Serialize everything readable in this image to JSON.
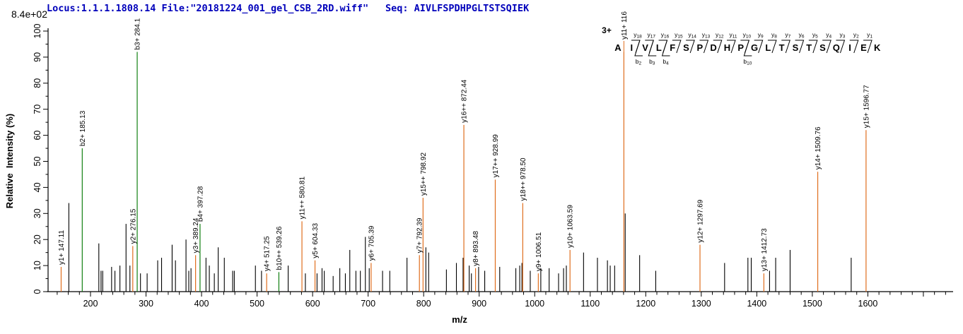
{
  "header": {
    "locus_file": "Locus:1.1.1.1808.14 File:\"20181224_001_gel_CSB_2RD.wiff\"",
    "seq_label": "Seq: AIVLFSPDHPGLTSTSQIEK",
    "intensity_full_scale": "8.4e+02"
  },
  "colors": {
    "y_ion": "#E06E1E",
    "b_ion": "#128012",
    "unassigned": "#000000",
    "header_blue": "#0000BB",
    "precursor_blue": "#0000DD",
    "axis": "#000000"
  },
  "chart_data": {
    "type": "bar",
    "subtype": "ms2-centroided-spectrum",
    "xlabel": "m/z",
    "ylabel": "Relative  Intensity (%)",
    "x_range": [
      120,
      1750
    ],
    "y_range": [
      0,
      100
    ],
    "x_major_ticks": [
      200,
      300,
      400,
      500,
      600,
      700,
      800,
      900,
      1000,
      1100,
      1200,
      1300,
      1400,
      1500,
      1600
    ],
    "x_minor_step": 20,
    "y_major_step": 10,
    "y_minor_step": 5,
    "y_tick_labels": [
      "0",
      "10",
      "20",
      "30",
      "40",
      "50",
      "60",
      "70",
      "80",
      "90",
      "100"
    ],
    "intensity_full_scale": "8.4e+02",
    "precursor": {
      "charge": "3+"
    },
    "peptide": {
      "sequence": "AIVLFSPDHPGLTSTSQIEK",
      "y_marks": [
        {
          "label": "y18",
          "after": 2
        },
        {
          "label": "y17",
          "after": 3
        },
        {
          "label": "y16",
          "after": 4
        },
        {
          "label": "y15",
          "after": 5
        },
        {
          "label": "y14",
          "after": 6
        },
        {
          "label": "y13",
          "after": 7
        },
        {
          "label": "y12",
          "after": 8
        },
        {
          "label": "y11",
          "after": 9
        },
        {
          "label": "y10",
          "after": 10
        },
        {
          "label": "y9",
          "after": 11
        },
        {
          "label": "y8",
          "after": 12
        },
        {
          "label": "y7",
          "after": 13
        },
        {
          "label": "y6",
          "after": 14
        },
        {
          "label": "y5",
          "after": 15
        },
        {
          "label": "y4",
          "after": 16
        },
        {
          "label": "y3",
          "after": 17
        },
        {
          "label": "y2",
          "after": 18
        },
        {
          "label": "y1",
          "after": 19
        }
      ],
      "b_marks": [
        {
          "label": "b2",
          "after": 2
        },
        {
          "label": "b3",
          "after": 3
        },
        {
          "label": "b4",
          "after": 4
        },
        {
          "label": "b10",
          "after": 10
        }
      ]
    },
    "series": [
      {
        "name": "y-ions",
        "color": "#E06E1E",
        "points": [
          {
            "label": "y1+ 147.11",
            "mz": 147.11,
            "i": 9.5
          },
          {
            "label": "y2+ 276.15",
            "mz": 276.15,
            "i": 17.5
          },
          {
            "label": "y3+ 389.24",
            "mz": 389.24,
            "i": 14
          },
          {
            "label": "y4+ 517.25",
            "mz": 517.25,
            "i": 7
          },
          {
            "label": "y11++ 580.81",
            "mz": 580.81,
            "i": 27
          },
          {
            "label": "y5+ 604.33",
            "mz": 604.33,
            "i": 12
          },
          {
            "label": "y6+ 705.39",
            "mz": 705.39,
            "i": 11
          },
          {
            "label": "y7+ 792.39",
            "mz": 792.39,
            "i": 14
          },
          {
            "label": "y15++ 798.92",
            "mz": 798.92,
            "i": 36
          },
          {
            "label": "y16++ 872.44",
            "mz": 872.44,
            "i": 64
          },
          {
            "label": "y8+ 893.48",
            "mz": 893.48,
            "i": 9
          },
          {
            "label": "y17++ 928.99",
            "mz": 928.99,
            "i": 43
          },
          {
            "label": "y18++ 978.50",
            "mz": 978.5,
            "i": 34
          },
          {
            "label": "y9+ 1006.51",
            "mz": 1006.51,
            "i": 7
          },
          {
            "label": "y10+ 1063.59",
            "mz": 1063.59,
            "i": 16
          },
          {
            "label": "y11+ 116",
            "mz": 1160.62,
            "i": 92,
            "label_clipped_at_top": true
          },
          {
            "label": "y12+ 1297.69",
            "mz": 1297.69,
            "i": 18
          },
          {
            "label": "y13+ 1412.73",
            "mz": 1412.73,
            "i": 7
          },
          {
            "label": "y14+ 1509.76",
            "mz": 1509.76,
            "i": 46
          },
          {
            "label": "y15+ 1596.77",
            "mz": 1596.77,
            "i": 62
          }
        ]
      },
      {
        "name": "b-ions",
        "color": "#128012",
        "points": [
          {
            "label": "b2+ 185.13",
            "mz": 185.13,
            "i": 55
          },
          {
            "label": "b3+ 284.1",
            "mz": 284.1,
            "i": 92
          },
          {
            "label": "b4+ 397.28",
            "mz": 397.28,
            "i": 26
          },
          {
            "label": "b10++ 539.26",
            "mz": 539.26,
            "i": 7.5
          }
        ]
      },
      {
        "name": "unassigned",
        "color": "#000000",
        "points": [
          [
            161,
            34
          ],
          [
            215,
            18.5
          ],
          [
            219,
            8
          ],
          [
            222,
            8
          ],
          [
            238,
            9.5
          ],
          [
            244,
            8
          ],
          [
            253,
            10
          ],
          [
            264,
            26
          ],
          [
            271,
            10
          ],
          [
            290,
            7
          ],
          [
            302,
            7
          ],
          [
            321,
            12
          ],
          [
            328,
            13
          ],
          [
            347,
            18
          ],
          [
            353,
            12
          ],
          [
            372,
            20
          ],
          [
            377,
            8
          ],
          [
            381,
            9
          ],
          [
            408,
            13
          ],
          [
            414,
            10
          ],
          [
            423,
            7
          ],
          [
            430,
            17
          ],
          [
            441,
            13
          ],
          [
            456,
            8
          ],
          [
            459,
            8
          ],
          [
            497,
            10
          ],
          [
            508,
            8
          ],
          [
            556,
            10
          ],
          [
            587,
            7
          ],
          [
            608,
            7
          ],
          [
            617,
            9
          ],
          [
            621,
            8
          ],
          [
            637,
            6
          ],
          [
            649,
            9
          ],
          [
            659,
            7
          ],
          [
            667,
            16
          ],
          [
            678,
            8
          ],
          [
            686,
            8
          ],
          [
            695,
            21
          ],
          [
            702,
            9
          ],
          [
            726,
            8
          ],
          [
            739,
            8
          ],
          [
            770,
            13
          ],
          [
            804,
            17
          ],
          [
            809,
            15
          ],
          [
            841,
            8.5
          ],
          [
            859,
            11
          ],
          [
            871,
            13
          ],
          [
            882,
            10
          ],
          [
            886,
            7
          ],
          [
            899,
            9.5
          ],
          [
            910,
            8
          ],
          [
            937,
            9.5
          ],
          [
            966,
            9
          ],
          [
            973,
            10
          ],
          [
            977,
            11
          ],
          [
            992,
            8
          ],
          [
            1011,
            9
          ],
          [
            1026,
            9
          ],
          [
            1043,
            7
          ],
          [
            1052,
            9
          ],
          [
            1057,
            10
          ],
          [
            1088,
            15
          ],
          [
            1113,
            13
          ],
          [
            1131,
            12
          ],
          [
            1136,
            10
          ],
          [
            1144,
            10
          ],
          [
            1163,
            30
          ],
          [
            1189,
            14
          ],
          [
            1218,
            8
          ],
          [
            1342,
            11
          ],
          [
            1384,
            13
          ],
          [
            1390,
            13
          ],
          [
            1423,
            8
          ],
          [
            1434,
            13
          ],
          [
            1460,
            16
          ],
          [
            1570,
            13
          ]
        ]
      }
    ]
  }
}
